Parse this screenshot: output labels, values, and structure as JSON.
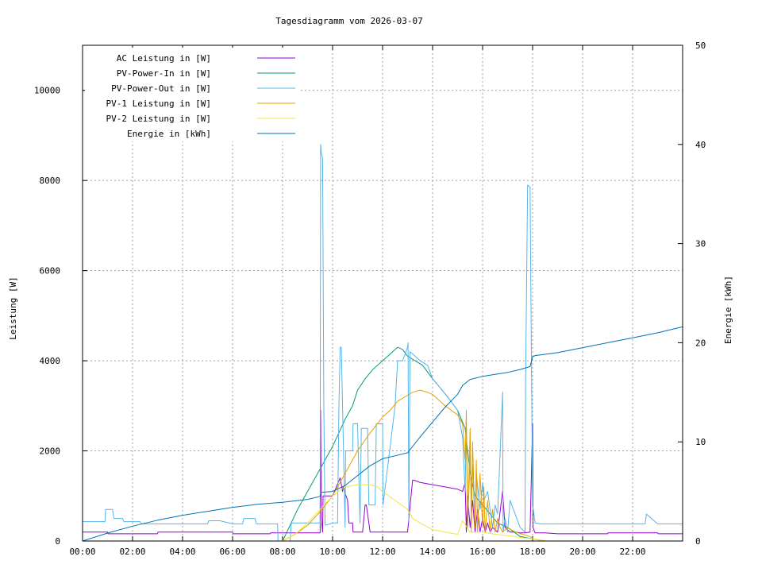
{
  "chart_data": {
    "type": "line",
    "title": "Tagesdiagramm vom 2026-03-07",
    "xlabel": "",
    "ylabel": "Leistung [W]",
    "y2label": "Energie [kWh]",
    "xlim": [
      0,
      24
    ],
    "ylim": [
      0,
      11000
    ],
    "y2lim": [
      0,
      50
    ],
    "x_ticks": [
      {
        "v": 0,
        "label": "00:00"
      },
      {
        "v": 2,
        "label": "02:00"
      },
      {
        "v": 4,
        "label": "04:00"
      },
      {
        "v": 6,
        "label": "06:00"
      },
      {
        "v": 8,
        "label": "08:00"
      },
      {
        "v": 10,
        "label": "10:00"
      },
      {
        "v": 12,
        "label": "12:00"
      },
      {
        "v": 14,
        "label": "14:00"
      },
      {
        "v": 16,
        "label": "16:00"
      },
      {
        "v": 18,
        "label": "18:00"
      },
      {
        "v": 20,
        "label": "20:00"
      },
      {
        "v": 22,
        "label": "22:00"
      }
    ],
    "y_ticks": [
      {
        "v": 0,
        "label": "0"
      },
      {
        "v": 2000,
        "label": "2000"
      },
      {
        "v": 4000,
        "label": "4000"
      },
      {
        "v": 6000,
        "label": "6000"
      },
      {
        "v": 8000,
        "label": "8000"
      },
      {
        "v": 10000,
        "label": "10000"
      }
    ],
    "y2_ticks": [
      {
        "v": 0,
        "label": "0"
      },
      {
        "v": 10,
        "label": "10"
      },
      {
        "v": 20,
        "label": "20"
      },
      {
        "v": 30,
        "label": "30"
      },
      {
        "v": 40,
        "label": "40"
      },
      {
        "v": 50,
        "label": "50"
      }
    ],
    "grid": true,
    "legend_position": "top-left",
    "series": [
      {
        "name": "AC Leistung in [W]",
        "color": "#9400d3",
        "axis": "y1",
        "x": [
          0,
          1.0,
          1.02,
          3.0,
          3.02,
          6.0,
          6.02,
          7.5,
          7.52,
          9.5,
          9.52,
          9.55,
          9.6,
          9.62,
          10.0,
          10.3,
          10.4,
          10.42,
          10.6,
          10.65,
          10.8,
          10.82,
          11.2,
          11.3,
          11.35,
          11.5,
          11.55,
          12.0,
          12.02,
          12.5,
          13.0,
          13.2,
          13.25,
          13.5,
          14.0,
          14.5,
          15.0,
          15.2,
          15.3,
          15.35,
          15.4,
          15.5,
          15.6,
          15.7,
          15.8,
          15.9,
          16.0,
          16.1,
          16.2,
          16.3,
          16.4,
          16.6,
          16.8,
          16.9,
          17.1,
          17.3,
          17.5,
          17.7,
          17.9,
          18.0,
          18.02,
          18.1,
          18.2,
          18.5,
          19.0,
          21.0,
          21.02,
          23.0,
          23.02,
          24.0
        ],
        "y": [
          200,
          200,
          160,
          160,
          200,
          200,
          160,
          160,
          180,
          180,
          2900,
          500,
          200,
          1000,
          1000,
          1400,
          1100,
          1200,
          900,
          400,
          400,
          200,
          200,
          800,
          800,
          200,
          200,
          200,
          200,
          200,
          200,
          1350,
          1350,
          1300,
          1250,
          1200,
          1150,
          1100,
          1300,
          200,
          1000,
          300,
          900,
          200,
          700,
          200,
          500,
          200,
          400,
          200,
          300,
          200,
          1100,
          300,
          200,
          200,
          180,
          180,
          200,
          2600,
          300,
          180,
          180,
          180,
          160,
          160,
          180,
          180,
          160,
          160
        ]
      },
      {
        "name": "PV-Power-In in [W]",
        "color": "#009e73",
        "axis": "y1",
        "x": [
          0,
          8.0,
          8.3,
          8.6,
          9.0,
          9.5,
          10.0,
          10.5,
          10.8,
          11.0,
          11.3,
          11.6,
          12.0,
          12.3,
          12.6,
          12.8,
          13.0,
          13.3,
          13.6,
          14.0,
          14.3,
          14.6,
          15.0,
          15.3,
          15.5,
          15.7,
          16.0,
          16.3,
          16.6,
          17.0,
          17.5,
          18.0,
          18.5,
          19.0,
          24.0
        ],
        "y": [
          0,
          0,
          350,
          700,
          1100,
          1600,
          2100,
          2700,
          3000,
          3350,
          3600,
          3800,
          4000,
          4150,
          4300,
          4250,
          4100,
          4000,
          3900,
          3600,
          3400,
          3200,
          2900,
          2500,
          1500,
          1000,
          800,
          600,
          400,
          300,
          100,
          50,
          0,
          0,
          0
        ]
      },
      {
        "name": "PV-Power-Out in [W]",
        "color": "#56b4e9",
        "axis": "y1",
        "x": [
          0,
          0.9,
          0.92,
          1.2,
          1.25,
          1.6,
          1.65,
          2.3,
          2.35,
          3.0,
          3.5,
          5.0,
          5.05,
          5.5,
          6.0,
          6.4,
          6.45,
          6.9,
          6.95,
          7.5,
          7.8,
          7.82,
          8.3,
          8.35,
          9.0,
          9.5,
          9.52,
          9.55,
          9.6,
          9.65,
          9.7,
          9.72,
          10.0,
          10.2,
          10.25,
          10.3,
          10.35,
          10.5,
          10.52,
          10.8,
          10.82,
          11.0,
          11.1,
          11.15,
          11.4,
          11.45,
          11.7,
          11.75,
          12.0,
          12.02,
          12.5,
          12.6,
          12.8,
          13.0,
          13.02,
          13.05,
          13.1,
          13.3,
          13.5,
          13.8,
          14.0,
          14.3,
          14.6,
          15.0,
          15.2,
          15.3,
          15.35,
          15.4,
          15.5,
          15.55,
          15.6,
          15.7,
          15.75,
          15.9,
          16.0,
          16.05,
          16.2,
          16.4,
          16.5,
          16.6,
          16.8,
          16.82,
          16.9,
          17.0,
          17.1,
          17.5,
          17.7,
          17.72,
          17.8,
          17.9,
          18.0,
          18.1,
          18.3,
          18.5,
          19.0,
          20.0,
          21.0,
          22.0,
          22.5,
          22.55,
          23.0,
          24.0
        ],
        "y": [
          430,
          430,
          700,
          700,
          500,
          500,
          430,
          430,
          380,
          380,
          380,
          380,
          450,
          450,
          380,
          380,
          500,
          500,
          380,
          380,
          380,
          0,
          0,
          400,
          400,
          400,
          8800,
          8600,
          8500,
          2900,
          400,
          350,
          400,
          400,
          2900,
          4300,
          4300,
          300,
          2000,
          2000,
          2600,
          2600,
          400,
          2500,
          2500,
          800,
          800,
          2600,
          2600,
          800,
          3000,
          4000,
          4000,
          4300,
          4400,
          400,
          4200,
          4100,
          4000,
          3900,
          3600,
          3400,
          3200,
          2900,
          2300,
          1100,
          2600,
          300,
          1900,
          1000,
          1700,
          300,
          1500,
          700,
          1300,
          900,
          1100,
          300,
          800,
          600,
          3300,
          200,
          500,
          200,
          900,
          300,
          200,
          3600,
          7900,
          7850,
          800,
          400,
          380,
          380,
          380,
          380,
          380,
          380,
          380,
          600,
          380,
          380
        ]
      },
      {
        "name": "PV-1 Leistung in [W]",
        "color": "#e69f00",
        "axis": "y1",
        "x": [
          0,
          8.0,
          8.5,
          9.0,
          9.5,
          10.0,
          10.5,
          11.0,
          11.5,
          12.0,
          12.3,
          12.6,
          12.9,
          13.2,
          13.5,
          13.8,
          14.0,
          14.5,
          15.0,
          15.2,
          15.3,
          15.35,
          15.4,
          15.5,
          15.55,
          15.6,
          15.7,
          15.75,
          15.8,
          15.9,
          16.0,
          16.05,
          16.1,
          16.2,
          16.3,
          16.4,
          16.5,
          16.6,
          16.7,
          16.8,
          17.0,
          17.3,
          17.6,
          17.9,
          18.0,
          18.5,
          24.0
        ],
        "y": [
          0,
          0,
          150,
          350,
          650,
          1000,
          1500,
          2000,
          2400,
          2750,
          2900,
          3100,
          3200,
          3300,
          3350,
          3300,
          3250,
          3000,
          2800,
          2600,
          1800,
          2900,
          300,
          2500,
          200,
          2200,
          300,
          1800,
          200,
          1500,
          300,
          1200,
          200,
          900,
          200,
          700,
          200,
          500,
          300,
          200,
          300,
          200,
          150,
          100,
          50,
          0,
          0
        ]
      },
      {
        "name": "PV-2 Leistung in [W]",
        "color": "#f0e442",
        "axis": "y1",
        "x": [
          0,
          8.0,
          8.5,
          9.0,
          9.5,
          10.0,
          10.5,
          11.0,
          11.5,
          11.8,
          12.0,
          12.5,
          13.0,
          13.2,
          13.5,
          14.0,
          14.5,
          15.0,
          15.2,
          15.5,
          16.0,
          16.5,
          17.0,
          17.5,
          18.0,
          18.5,
          24.0
        ],
        "y": [
          0,
          0,
          150,
          400,
          700,
          1000,
          1200,
          1250,
          1250,
          1200,
          1100,
          900,
          700,
          500,
          400,
          250,
          200,
          150,
          450,
          200,
          200,
          150,
          120,
          80,
          50,
          0,
          0
        ]
      },
      {
        "name": "Energie in [kWh]",
        "color": "#0072b2",
        "axis": "y2",
        "x": [
          0,
          1,
          2,
          3,
          4,
          5,
          6,
          7,
          8,
          9,
          9.5,
          9.55,
          10,
          10.5,
          11,
          11.5,
          12,
          12.5,
          13,
          13.5,
          14,
          14.5,
          15,
          15.2,
          15.5,
          16,
          16.5,
          17,
          17.5,
          17.9,
          18.0,
          18.1,
          19,
          20,
          21,
          22,
          23,
          24
        ],
        "y": [
          0,
          0.8,
          1.5,
          2.1,
          2.6,
          3.0,
          3.4,
          3.7,
          3.9,
          4.2,
          4.5,
          4.9,
          5.0,
          5.6,
          6.6,
          7.6,
          8.3,
          8.6,
          8.9,
          10.5,
          12.0,
          13.5,
          14.8,
          15.7,
          16.3,
          16.6,
          16.8,
          17.0,
          17.3,
          17.6,
          18.6,
          18.7,
          19.0,
          19.5,
          20.0,
          20.5,
          21.0,
          21.6
        ]
      }
    ]
  }
}
